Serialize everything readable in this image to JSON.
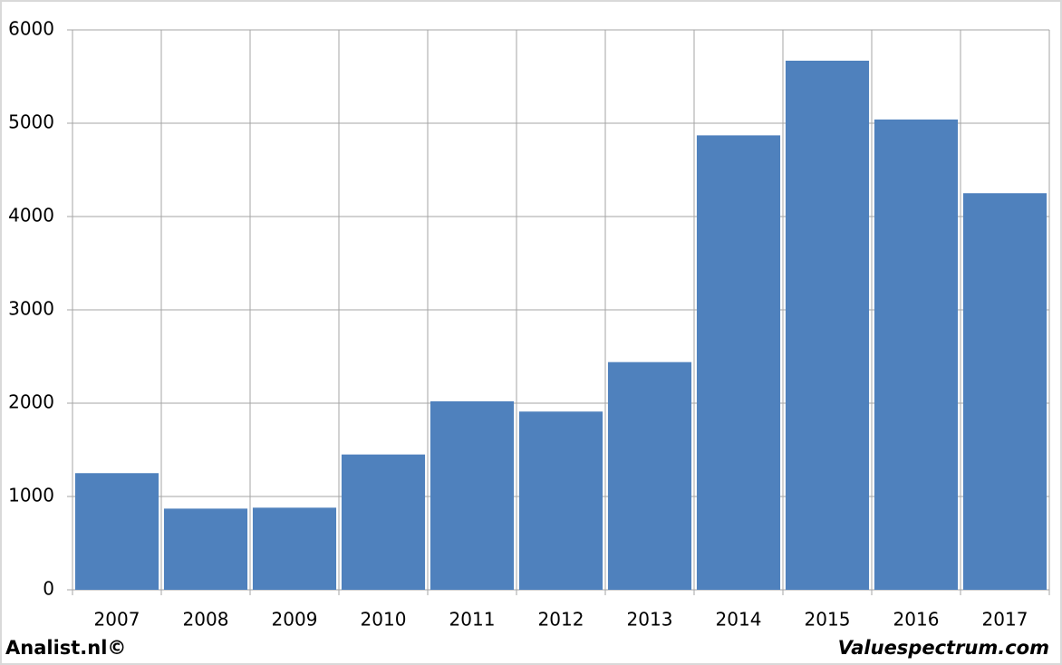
{
  "chart_data": {
    "type": "bar",
    "categories": [
      "2007",
      "2008",
      "2009",
      "2010",
      "2011",
      "2012",
      "2013",
      "2014",
      "2015",
      "2016",
      "2017"
    ],
    "values": [
      1250,
      870,
      880,
      1450,
      2020,
      1910,
      2440,
      4870,
      5670,
      5040,
      4250
    ],
    "color": "#4f81bd",
    "ylim": [
      0,
      6000
    ],
    "yticks": [
      0,
      1000,
      2000,
      3000,
      4000,
      5000,
      6000
    ],
    "grid": true,
    "source_left": "Analist.nl©",
    "source_right": "Valuespectrum.com"
  }
}
